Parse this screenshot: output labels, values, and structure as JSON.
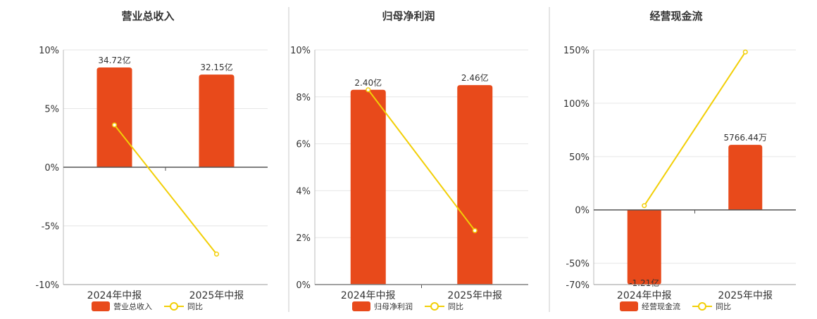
{
  "colors": {
    "bar": "#E84A1B",
    "line": "#F2CF07",
    "divider": "#C8C8C8",
    "axis": "#555555",
    "grid": "#E6E6E6",
    "text": "#333333"
  },
  "chart_data": [
    {
      "type": "bar",
      "title": "营业总收入",
      "categories": [
        "2024年中报",
        "2025年中报"
      ],
      "bar_labels": [
        "34.72亿",
        "32.15亿"
      ],
      "yticks": [
        "10%",
        "5%",
        "0%",
        "-5%",
        "-10%"
      ],
      "ylim": [
        -10,
        10
      ],
      "series": [
        {
          "name": "营业总收入",
          "kind": "bar",
          "values": [
            8.5,
            7.9
          ]
        },
        {
          "name": "同比",
          "kind": "line",
          "values": [
            3.6,
            -7.4
          ]
        }
      ],
      "legend": [
        "营业总收入",
        "同比"
      ],
      "legend_position": "bottom"
    },
    {
      "type": "bar",
      "title": "归母净利润",
      "categories": [
        "2024年中报",
        "2025年中报"
      ],
      "bar_labels": [
        "2.40亿",
        "2.46亿"
      ],
      "yticks": [
        "10%",
        "8%",
        "6%",
        "4%",
        "2%",
        "0%"
      ],
      "ylim": [
        0,
        10
      ],
      "series": [
        {
          "name": "归母净利润",
          "kind": "bar",
          "values": [
            8.3,
            8.5
          ]
        },
        {
          "name": "同比",
          "kind": "line",
          "values": [
            8.3,
            2.3
          ]
        }
      ],
      "legend": [
        "归母净利润",
        "同比"
      ],
      "legend_position": "bottom"
    },
    {
      "type": "bar",
      "title": "经营现金流",
      "categories": [
        "2024年中报",
        "2025年中报"
      ],
      "bar_labels": [
        "-1.21亿",
        "5766.44万"
      ],
      "yticks": [
        "150%",
        "100%",
        "50%",
        "0%",
        "-50%",
        "-70%"
      ],
      "ylim": [
        -70,
        150
      ],
      "series": [
        {
          "name": "经营现金流",
          "kind": "bar",
          "values": [
            -70,
            61
          ]
        },
        {
          "name": "同比",
          "kind": "line",
          "values": [
            4,
            148
          ]
        }
      ],
      "legend": [
        "经营现金流",
        "同比"
      ],
      "legend_position": "bottom"
    }
  ]
}
